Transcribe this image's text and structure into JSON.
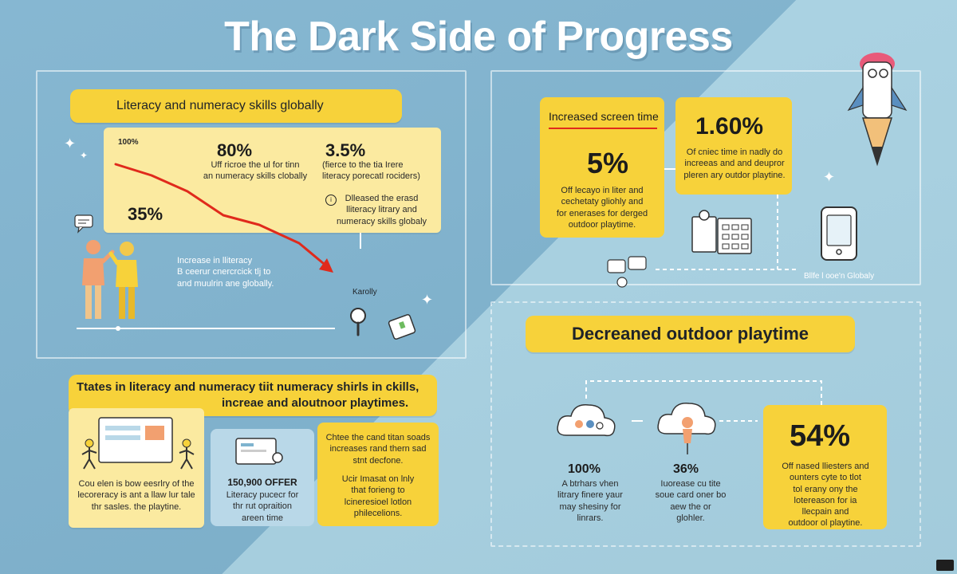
{
  "title": "The Dark Side of Progress",
  "colors": {
    "accent_yellow": "#f7d23a",
    "card_cream": "#fbeaa0",
    "trend_red": "#e02a1c",
    "bg_blue": "#7fb3cf"
  },
  "left_panel": {
    "header": "Literacy and numeracy skills globally",
    "chart": {
      "top_left": "100%",
      "stat_80": "80%",
      "stat_80_text": "Uff ricroe the ul for tinn\nan numeracy skills clobally",
      "stat_35": "3.5%",
      "stat_35_text": "(fierce to the tia Irere\nliteracy porecatl rociders)",
      "stat_35pct": "35%",
      "note_text": "Dlleased the erasd\nlliteracy litrary and\nnumeracy skills globaly",
      "bottom_text": "Increase in lliteracy\nB ceerur cnercrcick tlj to\nand muulrin ane globally.",
      "icon_label": "Karolly"
    }
  },
  "bottom_left": {
    "header_line1": "Ttates in literacy and numeracy tiit numeracy shirls in ckills,",
    "header_line2": "increae and aloutnoor playtimes.",
    "card1_text": "Cou elen is bow eesrlry of the\nlecoreracy is ant a llaw lur tale\nthr sasles. the playtine.",
    "card2_title": "150,900 OFFER",
    "card2_text": "Literacy pucecr for\nthr rut opraition\nareen time",
    "card3_text1": "Chtee the cand titan soads\nincreases rand thern sad\nstnt decfone.",
    "card3_text2": "Ucir Imasat on lnly\nthat forieng to\nlcineresioel lotlon\nphilecelions."
  },
  "right_top": {
    "header": "Increased screen time",
    "stat_5": "5%",
    "stat_5_text": "Off lecayo in liter and\ncechetaty gliohly and\nfor enerases for derged\noutdoor playtime.",
    "stat_160": "1.60%",
    "stat_160_text": "Of cniec time in nadly do\nincreeas and and deupror\npleren ary outdor playtine.",
    "device_label": "Bllfe l ooe'n Globaly"
  },
  "right_bottom": {
    "header": "Decreaned outdoor playtime",
    "stat_100": "100%",
    "stat_100_text": "A btrhars vhen\nlitrary finere yaur\nmay shesiny for\nlinrars.",
    "stat_36": "36%",
    "stat_36_text": "Iuorease cu tite\nsoue card oner bo\naew the or\nglohler.",
    "stat_54": "54%",
    "stat_54_text": "Off nased lliesters and\nounters cyte to tlot\ntol erany ony the\nlotereason for ia\nllecpain and\noutdoor ol playtine."
  },
  "icons": [
    "sparkle-icon",
    "chat-bubble-icon",
    "people-icon",
    "magnifier-icon",
    "phone-icon",
    "calculator-icon",
    "rocket-pencil-icon",
    "cloud-icon",
    "monitor-icon",
    "tablet-icon"
  ]
}
